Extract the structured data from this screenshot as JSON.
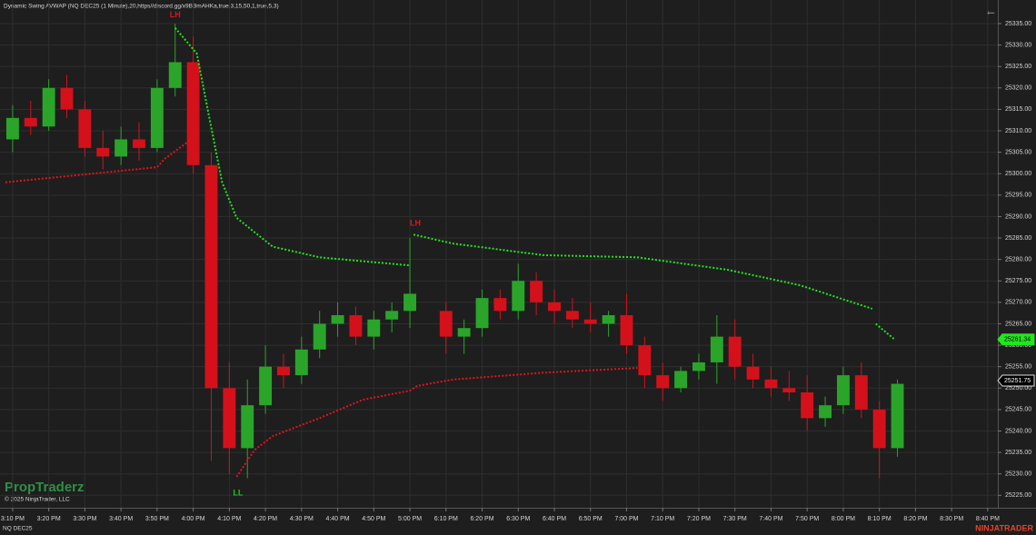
{
  "chart_data": {
    "type": "candlestick",
    "title": "Dynamic Swing AVWAP (NQ DEC25 (1 Minute),20,https//discord.gg/x9BBmAHKa,true,3,15,50,1,true,5,3)",
    "instrument": "NQ DEC25",
    "watermark": "PropTraderz",
    "copyright": "© 2025 NinjaTrader, LLC",
    "brand": "NINJATRADER",
    "up_color": "#2aa52a",
    "down_color": "#d4111b",
    "grid": true,
    "xlim": [
      -3.5,
      272.8
    ],
    "ylim": [
      25222.1,
      25340.5
    ],
    "x": [
      0,
      5,
      10,
      15,
      20,
      25,
      30,
      35,
      40,
      45,
      50,
      55,
      60,
      65,
      70,
      75,
      80,
      85,
      90,
      95,
      100,
      105,
      110,
      120,
      125,
      130,
      135,
      140,
      145,
      150,
      155,
      160,
      165,
      170,
      175,
      180,
      185,
      190,
      195,
      200,
      205,
      210,
      215,
      220,
      225,
      230,
      235,
      240,
      245
    ],
    "open": [
      25308,
      25313,
      25311,
      25320,
      25315,
      25306,
      25304,
      25308,
      25306,
      25320,
      25326,
      25302,
      25250,
      25236,
      25246,
      25255,
      25253,
      25259,
      25265,
      25267,
      25262,
      25266,
      25268,
      25268,
      25262,
      25264,
      25271,
      25268,
      25275,
      25270,
      25268,
      25266,
      25265,
      25267,
      25260,
      25253,
      25250,
      25254,
      25256,
      25262,
      25255,
      25252,
      25250,
      25249,
      25243,
      25246,
      25253,
      25245,
      25236
    ],
    "high": [
      25316,
      25317,
      25322,
      25323,
      25317,
      25310,
      25311,
      25312,
      25322,
      25335,
      25332,
      25305,
      25256,
      25252,
      25260,
      25258,
      25262,
      25268,
      25270,
      25269,
      25268,
      25270,
      25285,
      25270,
      25266,
      25273,
      25273,
      25279,
      25277,
      25273,
      25271,
      25270,
      25268,
      25272,
      25262,
      25256,
      25255,
      25258,
      25267,
      25266,
      25258,
      25255,
      25254,
      25253,
      25248,
      25255,
      25256,
      25247,
      25252
    ],
    "low": [
      25305,
      25309,
      25310,
      25313,
      25304,
      25301,
      25302,
      25303,
      25305,
      25318,
      25300,
      25233,
      25230,
      25229,
      25244,
      25250,
      25251,
      25257,
      25262,
      25260,
      25259,
      25263,
      25264,
      25258,
      25258,
      25262,
      25266,
      25266,
      25267,
      25265,
      25264,
      25263,
      25262,
      25258,
      25250,
      25247,
      25249,
      25252,
      25251,
      25252,
      25250,
      25248,
      25247,
      25240,
      25241,
      25244,
      25243,
      25229,
      25234
    ],
    "close": [
      25313,
      25311,
      25320,
      25315,
      25306,
      25304,
      25308,
      25306,
      25320,
      25326,
      25302,
      25250,
      25236,
      25246,
      25255,
      25253,
      25259,
      25265,
      25267,
      25262,
      25266,
      25268,
      25272,
      25262,
      25264,
      25271,
      25268,
      25275,
      25270,
      25268,
      25266,
      25265,
      25267,
      25260,
      25253,
      25250,
      25254,
      25256,
      25262,
      25255,
      25252,
      25250,
      25249,
      25243,
      25246,
      25253,
      25245,
      25236,
      25251
    ],
    "lines": [
      {
        "color": "#22e61e",
        "x": [
          45,
          51,
          54,
          58,
          62,
          72,
          85,
          110,
          110.5,
          111,
          122,
          147,
          173,
          198,
          218,
          238,
          238.5,
          239,
          244
        ],
        "values": [
          25334,
          25328,
          25315,
          25298,
          25289.7,
          25283,
          25280.5,
          25278.6,
          null,
          25285.8,
          25283.7,
          25281,
          25280.5,
          25277.6,
          25274,
          25268.5,
          null,
          25265,
          25261.5
        ]
      },
      {
        "color": "#e0141c",
        "x": [
          -2,
          40,
          42,
          49,
          49.5,
          62,
          67,
          72,
          85,
          97,
          110,
          112,
          122,
          147,
          173
        ],
        "values": [
          25298,
          25301.5,
          25303.4,
          25307.7,
          null,
          25229.3,
          25235.6,
          25238.8,
          25243,
          25247.3,
          25249.4,
          25250.5,
          25252,
          25253.6,
          25254.7
        ]
      }
    ],
    "annotations": [
      {
        "text": "LH",
        "x": 45,
        "y": 25337,
        "color": "#e0141c"
      },
      {
        "text": "LH",
        "x": 111.5,
        "y": 25288.4,
        "color": "#e0141c"
      },
      {
        "text": "LL",
        "x": 62.4,
        "y": 25225.5,
        "color": "#22c41e"
      }
    ],
    "price_markers": [
      {
        "value": 25261.34,
        "color": "#22e61e"
      },
      {
        "value": 25251.75,
        "color": "#000000"
      }
    ],
    "xticks": [
      {
        "value": 0,
        "label": "3:10 PM"
      },
      {
        "value": 10,
        "label": "3:20 PM"
      },
      {
        "value": 20,
        "label": "3:30 PM"
      },
      {
        "value": 30,
        "label": "3:40 PM"
      },
      {
        "value": 40,
        "label": "3:50 PM"
      },
      {
        "value": 50,
        "label": "4:00 PM"
      },
      {
        "value": 60,
        "label": "4:10 PM"
      },
      {
        "value": 70,
        "label": "4:20 PM"
      },
      {
        "value": 80,
        "label": "4:30 PM"
      },
      {
        "value": 90,
        "label": "4:40 PM"
      },
      {
        "value": 100,
        "label": "4:50 PM"
      },
      {
        "value": 110,
        "label": "5:00 PM"
      },
      {
        "value": 120,
        "label": "6:10 PM"
      },
      {
        "value": 130,
        "label": "6:20 PM"
      },
      {
        "value": 140,
        "label": "6:30 PM"
      },
      {
        "value": 150,
        "label": "6:40 PM"
      },
      {
        "value": 160,
        "label": "6:50 PM"
      },
      {
        "value": 170,
        "label": "7:00 PM"
      },
      {
        "value": 180,
        "label": "7:10 PM"
      },
      {
        "value": 190,
        "label": "7:20 PM"
      },
      {
        "value": 200,
        "label": "7:30 PM"
      },
      {
        "value": 210,
        "label": "7:40 PM"
      },
      {
        "value": 220,
        "label": "7:50 PM"
      },
      {
        "value": 230,
        "label": "8:00 PM"
      },
      {
        "value": 240,
        "label": "8:10 PM"
      },
      {
        "value": 250,
        "label": "8:20 PM"
      },
      {
        "value": 260,
        "label": "8:30 PM"
      },
      {
        "value": 270,
        "label": "8:40 PM"
      }
    ],
    "yticks": [
      {
        "value": 25225,
        "label": "25225.00"
      },
      {
        "value": 25230,
        "label": "25230.00"
      },
      {
        "value": 25235,
        "label": "25235.00"
      },
      {
        "value": 25240,
        "label": "25240.00"
      },
      {
        "value": 25245,
        "label": "25245.00"
      },
      {
        "value": 25250,
        "label": "25250.00"
      },
      {
        "value": 25255,
        "label": "25255.00"
      },
      {
        "value": 25260,
        "label": "25260.00"
      },
      {
        "value": 25265,
        "label": "25265.00"
      },
      {
        "value": 25270,
        "label": "25270.00"
      },
      {
        "value": 25275,
        "label": "25275.00"
      },
      {
        "value": 25280,
        "label": "25280.00"
      },
      {
        "value": 25285,
        "label": "25285.00"
      },
      {
        "value": 25290,
        "label": "25290.00"
      },
      {
        "value": 25295,
        "label": "25295.00"
      },
      {
        "value": 25300,
        "label": "25300.00"
      },
      {
        "value": 25305,
        "label": "25305.00"
      },
      {
        "value": 25310,
        "label": "25310.00"
      },
      {
        "value": 25315,
        "label": "25315.00"
      },
      {
        "value": 25320,
        "label": "25320.00"
      },
      {
        "value": 25325,
        "label": "25325.00"
      },
      {
        "value": 25330,
        "label": "25330.00"
      },
      {
        "value": 25335,
        "label": "25335.00"
      }
    ]
  }
}
